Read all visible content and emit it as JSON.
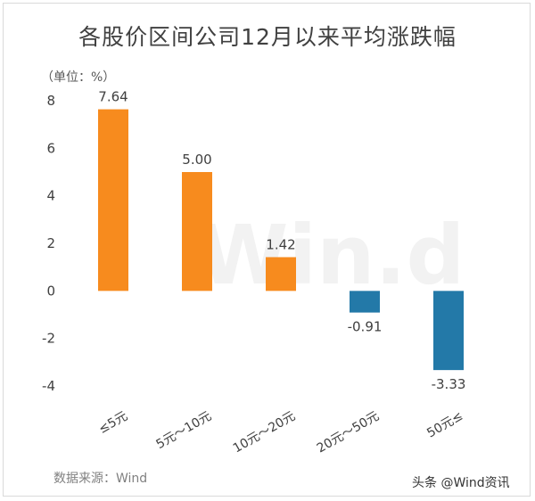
{
  "header": {
    "unit": "（单位：%）"
  },
  "footer": {
    "source": "数据来源：Wind",
    "credit": "头条 @Wind资讯"
  },
  "watermark": "Win.d",
  "colors": {
    "positive": "#f78b1e",
    "negative": "#2379a8"
  },
  "chart_data": {
    "type": "bar",
    "title": "各股价区间公司12月以来平均涨跌幅",
    "xlabel": "",
    "ylabel": "",
    "categories": [
      "≤5元",
      "5元～10元",
      "10元～20元",
      "20元～50元",
      "50元≤"
    ],
    "values": [
      7.64,
      5.0,
      1.42,
      -0.91,
      -3.33
    ],
    "value_labels": [
      "7.64",
      "5.00",
      "1.42",
      "-0.91",
      "-3.33"
    ],
    "ylim": [
      -4,
      8
    ],
    "yticks": [
      -4,
      -2,
      0,
      2,
      4,
      6,
      8
    ],
    "grid": false,
    "legend": "none"
  }
}
